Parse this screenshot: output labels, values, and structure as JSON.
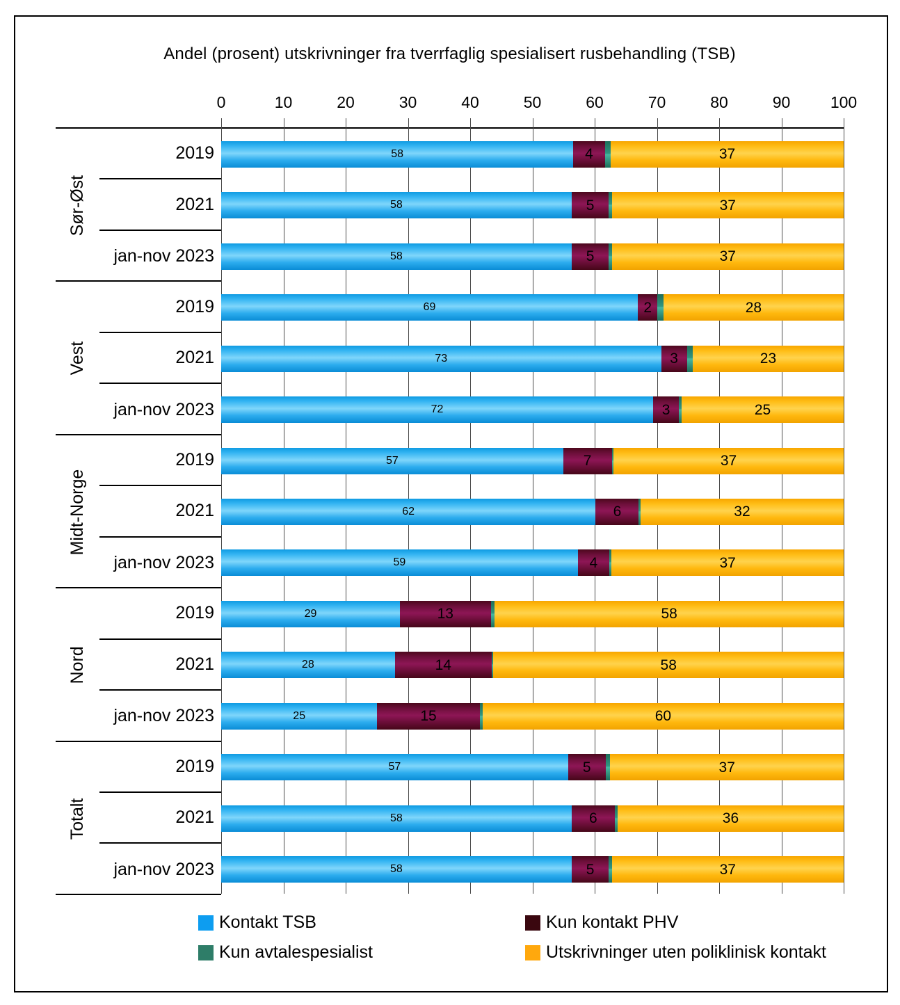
{
  "chart_data": {
    "type": "bar",
    "orientation": "horizontal-stacked",
    "title": "Andel (prosent)  utskrivninger fra tverrfaglig spesialisert rusbehandling (TSB)",
    "axis": {
      "min": 0,
      "max": 100,
      "ticks": [
        0,
        10,
        20,
        30,
        40,
        50,
        60,
        70,
        80,
        90,
        100
      ],
      "grid": true
    },
    "legend_position": "bottom",
    "series": [
      {
        "name": "Kontakt TSB",
        "color": "#0d9df0"
      },
      {
        "name": "Kun kontakt PHV",
        "color": "#3a070f"
      },
      {
        "name": "Kun avtalespesialist",
        "color": "#2e7d68"
      },
      {
        "name": "Utskrivninger uten poliklinisk kontakt",
        "color": "#ffa80d"
      }
    ],
    "groups": [
      {
        "name": "Sør-Øst",
        "rows": [
          {
            "label": "2019",
            "values": [
              58,
              4,
              1,
              37
            ],
            "labels": [
              "58",
              "4",
              "",
              "37"
            ]
          },
          {
            "label": "2021",
            "values": [
              58,
              5,
              0.5,
              37
            ],
            "labels": [
              "58",
              "5",
              "",
              "37"
            ]
          },
          {
            "label": "jan-nov 2023",
            "values": [
              58,
              5,
              0.5,
              37
            ],
            "labels": [
              "58",
              "5",
              "",
              "37"
            ]
          }
        ]
      },
      {
        "name": "Vest",
        "rows": [
          {
            "label": "2019",
            "values": [
              69,
              2,
              1,
              28
            ],
            "labels": [
              "69",
              "2",
              "",
              "28"
            ]
          },
          {
            "label": "2021",
            "values": [
              73,
              3,
              1,
              23
            ],
            "labels": [
              "73",
              "3",
              "",
              "23"
            ]
          },
          {
            "label": "jan-nov 2023",
            "values": [
              72,
              3,
              0.5,
              25
            ],
            "labels": [
              "72",
              "3",
              "",
              "25"
            ]
          }
        ]
      },
      {
        "name": "Midt-Norge",
        "rows": [
          {
            "label": "2019",
            "values": [
              57,
              7,
              0.3,
              37
            ],
            "labels": [
              "57",
              "7",
              "",
              "37"
            ]
          },
          {
            "label": "2021",
            "values": [
              62,
              6,
              0.3,
              32
            ],
            "labels": [
              "62",
              "6",
              "",
              "32"
            ]
          },
          {
            "label": "jan-nov 2023",
            "values": [
              59,
              4,
              0.4,
              37
            ],
            "labels": [
              "59",
              "4",
              "",
              "37"
            ]
          }
        ]
      },
      {
        "name": "Nord",
        "rows": [
          {
            "label": "2019",
            "values": [
              29,
              13,
              0.7,
              58
            ],
            "labels": [
              "29",
              "13",
              "",
              "58"
            ]
          },
          {
            "label": "2021",
            "values": [
              28,
              14,
              0.3,
              58
            ],
            "labels": [
              "28",
              "14",
              "",
              "58"
            ]
          },
          {
            "label": "jan-nov 2023",
            "values": [
              25,
              15,
              0.5,
              60
            ],
            "labels": [
              "25",
              "15",
              "",
              "60"
            ]
          }
        ]
      },
      {
        "name": "Totalt",
        "rows": [
          {
            "label": "2019",
            "values": [
              57,
              5,
              0.8,
              37
            ],
            "labels": [
              "57",
              "5",
              "",
              "37"
            ]
          },
          {
            "label": "2021",
            "values": [
              58,
              6,
              0.5,
              36
            ],
            "labels": [
              "58",
              "6",
              "",
              "36"
            ]
          },
          {
            "label": "jan-nov 2023",
            "values": [
              58,
              5,
              0.5,
              37
            ],
            "labels": [
              "58",
              "5",
              "",
              "37"
            ]
          }
        ]
      }
    ]
  }
}
